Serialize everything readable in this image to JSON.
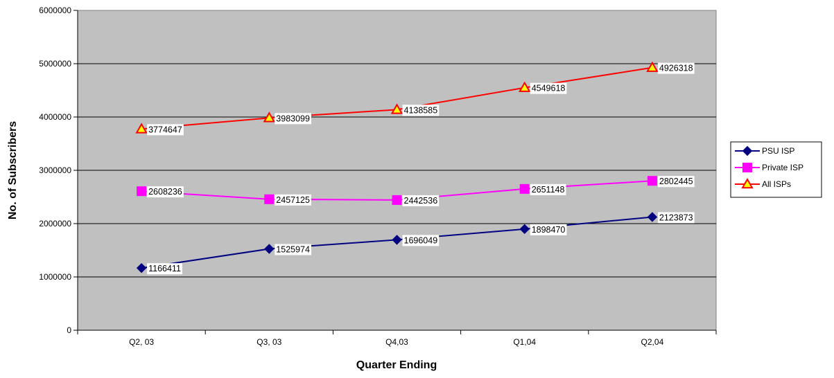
{
  "chart_data": {
    "type": "line",
    "title": "",
    "xlabel": "Quarter Ending",
    "ylabel": "No. of Subscribers",
    "categories": [
      "Q2, 03",
      "Q3, 03",
      "Q4,03",
      "Q1,04",
      "Q2,04"
    ],
    "ylim": [
      0,
      6000000
    ],
    "yticks": [
      "0",
      "1000000",
      "2000000",
      "3000000",
      "4000000",
      "5000000",
      "6000000"
    ],
    "grid": true,
    "plot_background": "#c0c0c0",
    "legend_position": "right",
    "series": [
      {
        "name": "PSU ISP",
        "values": [
          1166411,
          1525974,
          1696049,
          1898470,
          2123873
        ],
        "line_color": "#000080",
        "marker": "diamond",
        "marker_color": "#000080"
      },
      {
        "name": "Private ISP",
        "values": [
          2608236,
          2457125,
          2442536,
          2651148,
          2802445
        ],
        "line_color": "#ff00ff",
        "marker": "square",
        "marker_color": "#ff00ff"
      },
      {
        "name": "All ISPs",
        "values": [
          3774647,
          3983099,
          4138585,
          4549618,
          4926318
        ],
        "line_color": "#ff0000",
        "marker": "triangle",
        "marker_color": "#ffff00"
      }
    ]
  }
}
